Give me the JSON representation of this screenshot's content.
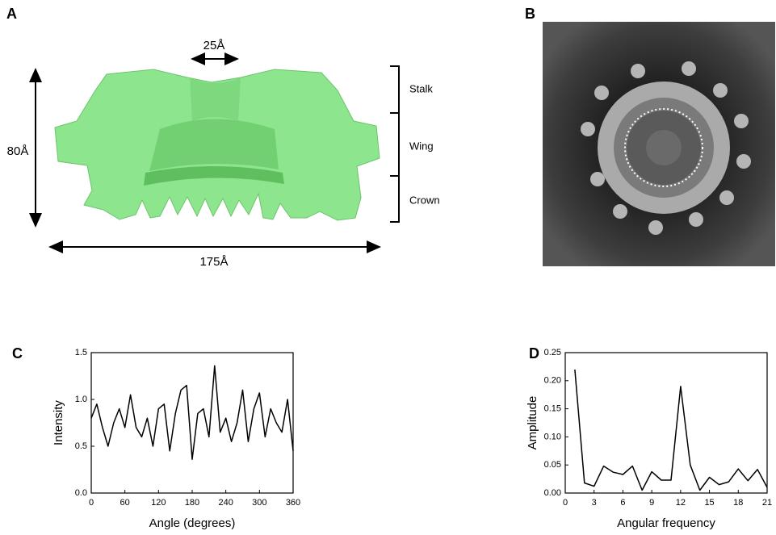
{
  "panels": {
    "a": {
      "label": "A",
      "width_top": "25Å",
      "height": "80Å",
      "width": "175Å",
      "regions": [
        "Stalk",
        "Wing",
        "Crown"
      ]
    },
    "b": {
      "label": "B"
    }
  },
  "chart_data": [
    {
      "type": "line",
      "panel_label": "C",
      "x_label": "Angle (degrees)",
      "y_label": "Intensity",
      "color": "#000000",
      "x": [
        0,
        10,
        20,
        30,
        40,
        50,
        60,
        70,
        80,
        90,
        100,
        110,
        120,
        130,
        140,
        150,
        160,
        170,
        180,
        190,
        200,
        210,
        220,
        230,
        240,
        250,
        260,
        270,
        280,
        290,
        300,
        310,
        320,
        330,
        340,
        350,
        360
      ],
      "values": [
        0.8,
        0.95,
        0.7,
        0.5,
        0.75,
        0.9,
        0.7,
        1.05,
        0.7,
        0.6,
        0.8,
        0.5,
        0.9,
        0.95,
        0.45,
        0.85,
        1.1,
        1.15,
        0.36,
        0.85,
        0.9,
        0.6,
        1.36,
        0.65,
        0.8,
        0.55,
        0.75,
        1.1,
        0.55,
        0.9,
        1.07,
        0.6,
        0.9,
        0.75,
        0.65,
        1.0,
        0.45
      ],
      "xlim": [
        0,
        360
      ],
      "xticks": [
        0,
        60,
        120,
        180,
        240,
        300,
        360
      ],
      "ylim": [
        0,
        1.5
      ],
      "yticks": [
        {
          "value": 0,
          "label": "0.0"
        },
        0.5,
        {
          "value": 1,
          "label": "1.0"
        },
        1.5
      ]
    },
    {
      "type": "line",
      "panel_label": "D",
      "x_label": "Angular frequency",
      "y_label": "Amplitude",
      "color": "#000000",
      "x": [
        1,
        2,
        3,
        4,
        5,
        6,
        7,
        8,
        9,
        10,
        11,
        12,
        13,
        14,
        15,
        16,
        17,
        18,
        19,
        20,
        21
      ],
      "values": [
        0.22,
        0.018,
        0.012,
        0.048,
        0.037,
        0.033,
        0.048,
        0.005,
        0.038,
        0.023,
        0.023,
        0.19,
        0.05,
        0.005,
        0.028,
        0.015,
        0.02,
        0.043,
        0.022,
        0.042,
        0.01
      ],
      "xlim": [
        0,
        21
      ],
      "xticks": [
        0,
        3,
        6,
        9,
        12,
        15,
        18,
        21
      ],
      "ylim": [
        0,
        0.25
      ],
      "yticks": [
        {
          "value": 0,
          "label": "0.00"
        },
        0.05,
        {
          "value": 0.1,
          "label": "0.10"
        },
        0.15,
        {
          "value": 0.2,
          "label": "0.20"
        },
        0.25
      ]
    }
  ]
}
